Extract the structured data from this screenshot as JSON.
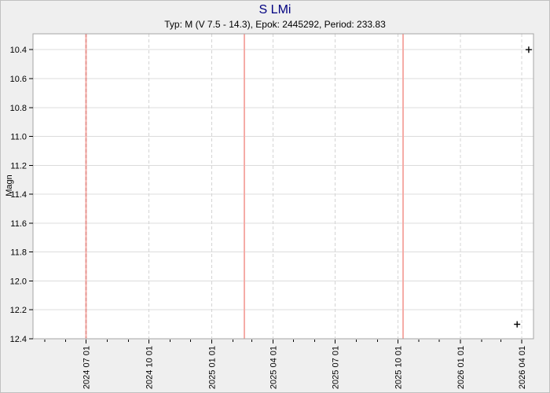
{
  "chart_data": {
    "type": "scatter",
    "title": "S LMi",
    "subtitle": "Typ: M (V 7.5 - 14.3), Epok: 2445292, Period: 233.83",
    "ylabel": "Magn",
    "y_axis": {
      "inverted": true,
      "range": [
        10.29,
        12.4
      ],
      "tick_step": 0.2,
      "ticks": [
        10.4,
        10.6,
        10.8,
        11.0,
        11.2,
        11.4,
        11.6,
        11.8,
        12.0,
        12.2,
        12.4
      ]
    },
    "x_axis": {
      "domain_days": [
        0,
        734
      ],
      "major_ticks": [
        {
          "label": "2024 07 01",
          "day": 78
        },
        {
          "label": "2024 10 01",
          "day": 170
        },
        {
          "label": "2025 01 01",
          "day": 262
        },
        {
          "label": "2025 04 01",
          "day": 352
        },
        {
          "label": "2025 07 01",
          "day": 443
        },
        {
          "label": "2025 10 01",
          "day": 535
        },
        {
          "label": "2026 01 01",
          "day": 627
        },
        {
          "label": "2026 04 01",
          "day": 717
        }
      ],
      "minor_tick_days": [
        17,
        48,
        109,
        140,
        201,
        231,
        293,
        321,
        382,
        413,
        474,
        505,
        566,
        596,
        658,
        686
      ]
    },
    "reference_lines": [
      {
        "date_approx": "2024 06 30",
        "day": 78,
        "overlaps_gridline": true
      },
      {
        "date_approx": "2025 02 19",
        "day": 310,
        "overlaps_gridline": false
      },
      {
        "date_approx": "2025 10 11",
        "day": 543,
        "overlaps_gridline": false
      }
    ],
    "points": [
      {
        "date_approx": "2026 04 11",
        "day": 727,
        "mag": 10.4,
        "marker": "plus"
      },
      {
        "date_approx": "2026 03 25",
        "day": 710,
        "mag": 12.3,
        "marker": "plus"
      }
    ],
    "colors": {
      "title": "#000080",
      "text": "#000000",
      "window_background": "#efefef",
      "window_border": "#c0c0c0",
      "plot_background": "#ffffff",
      "frame_border": "#a6a6a6",
      "h_gridline": "#dcdcdc",
      "v_gridline": "#d4d4d4",
      "reference_line": "#f5aca7",
      "reference_line_overlay": "#e5928d",
      "marker": "#000000"
    }
  }
}
